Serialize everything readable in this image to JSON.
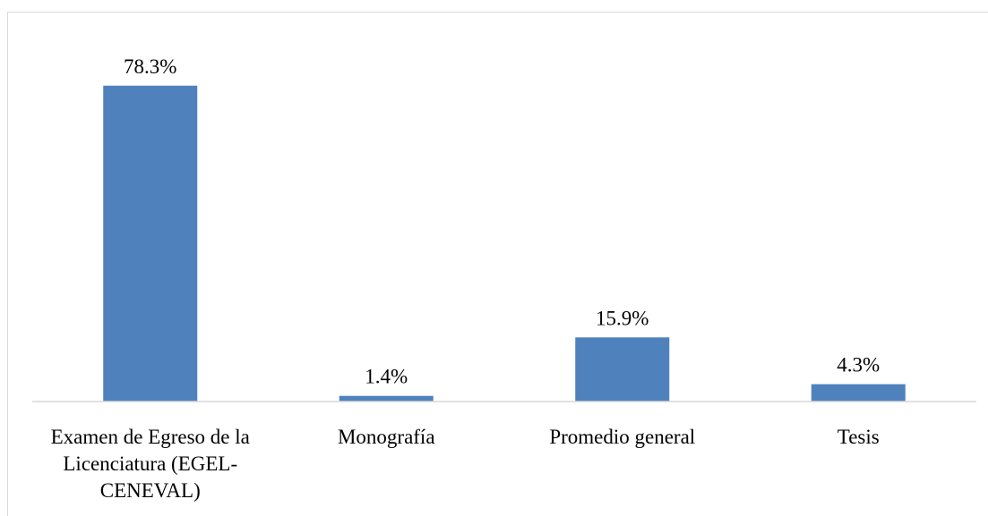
{
  "chart_data": {
    "type": "bar",
    "categories": [
      "Examen de Egreso de la Licenciatura (EGEL-CENEVAL)",
      "Monografía",
      "Promedio general",
      "Tesis"
    ],
    "values": [
      78.3,
      1.4,
      15.9,
      4.3
    ],
    "value_labels": [
      "78.3%",
      "1.4%",
      "15.9%",
      "4.3%"
    ],
    "color": "#4f81bd",
    "ylim": [
      0,
      90
    ]
  }
}
